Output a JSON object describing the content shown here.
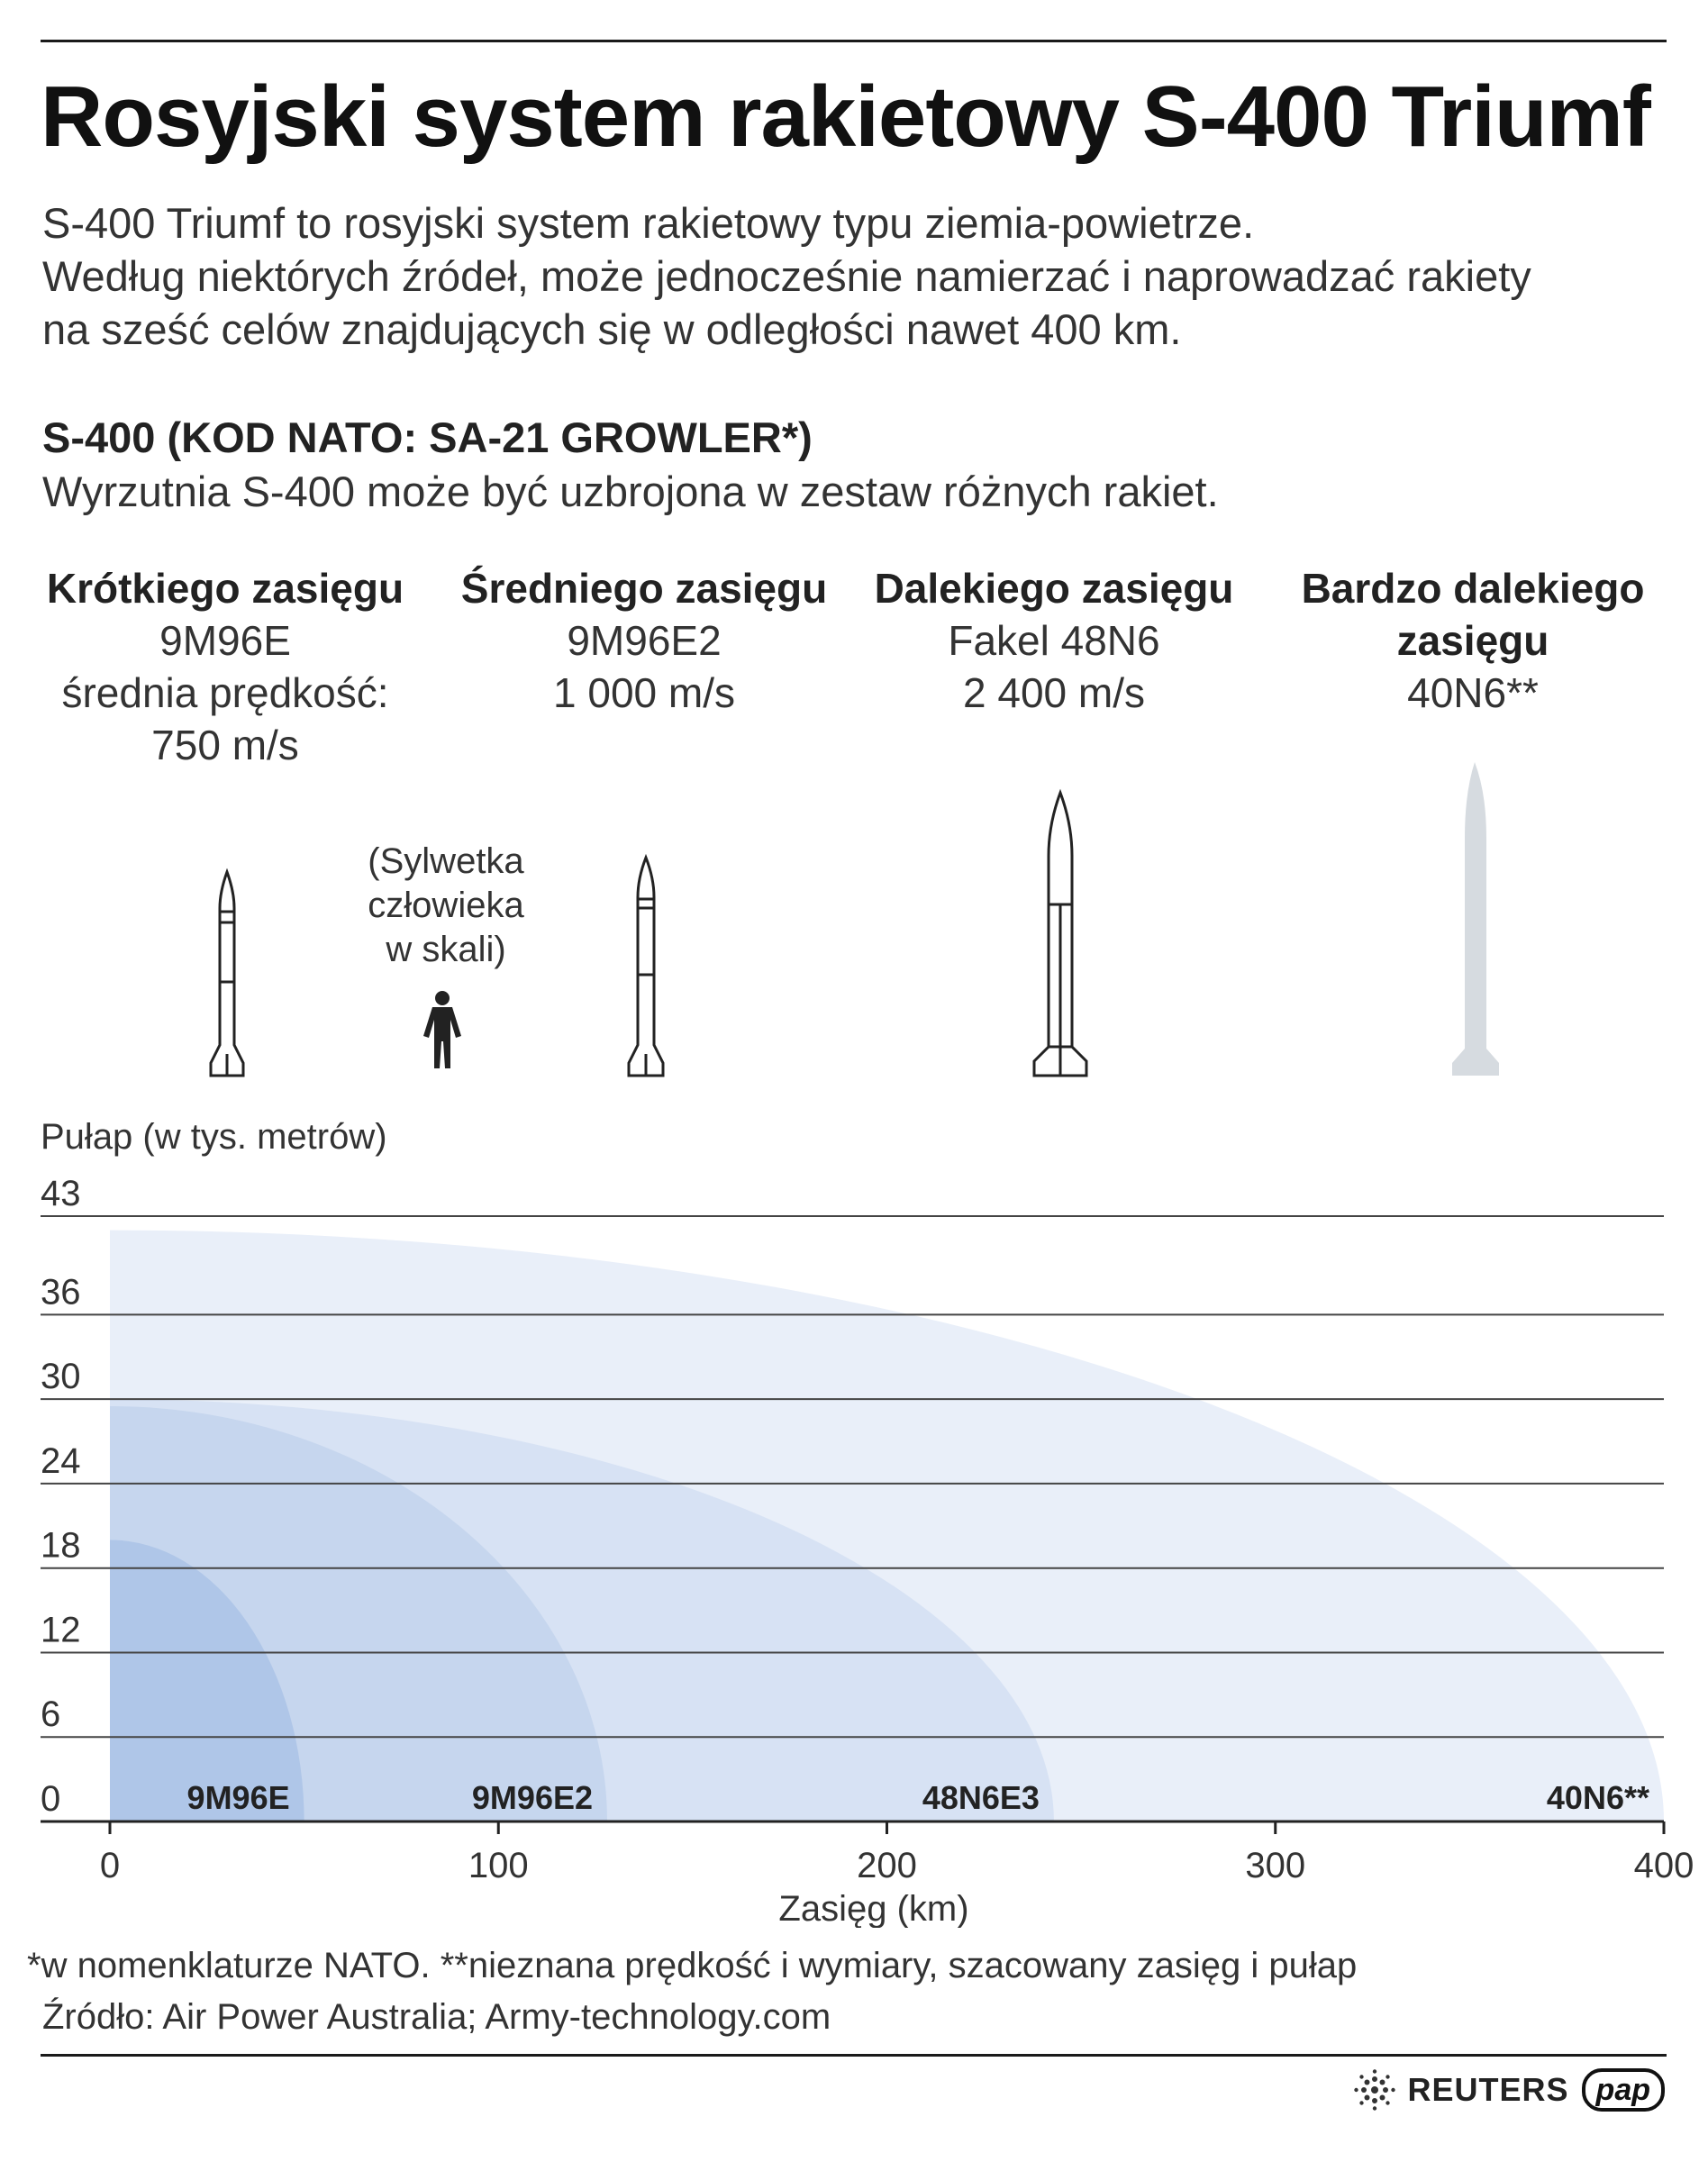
{
  "header": {
    "title": "Rosyjski system rakietowy S-400 Triumf",
    "intro": [
      "S-400 Triumf to rosyjski system rakietowy typu ziemia-powietrze.",
      "Według niektórych źródeł, może jednocześnie namierzać i naprowadzać rakiety",
      "na sześć celów znajdujących się w odległości nawet 400 km."
    ]
  },
  "section": {
    "heading": "S-400 (KOD NATO: SA-21 GROWLER*)",
    "description": "Wyrzutnia S-400 może być uzbrojona w zestaw różnych rakiet."
  },
  "missiles": [
    {
      "class": "Krótkiego zasięgu",
      "name": "9M96E",
      "speed_line1": "średnia prędkość:",
      "speed_line2": "750 m/s"
    },
    {
      "class": "Średniego zasięgu",
      "name": "9M96E2",
      "speed_line1": "1 000 m/s",
      "speed_line2": ""
    },
    {
      "class": "Dalekiego zasięgu",
      "name": "Fakel 48N6",
      "speed_line1": "2 400 m/s",
      "speed_line2": ""
    },
    {
      "class_line1": "Bardzo dalekiego",
      "class_line2": "zasięgu",
      "name": "40N6**"
    }
  ],
  "scale_note": [
    "(Sylwetka",
    "człowieka",
    "w skali)"
  ],
  "chart_data": {
    "type": "area",
    "title": "",
    "ylabel": "Pułap (w tys. metrów)",
    "xlabel": "Zasięg (km)",
    "xlim": [
      0,
      400
    ],
    "ylim": [
      0,
      43
    ],
    "x_ticks": [
      0,
      100,
      200,
      300,
      400
    ],
    "y_ticks": [
      0,
      6,
      12,
      18,
      24,
      30,
      36,
      43
    ],
    "grid": true,
    "series": [
      {
        "name": "40N6**",
        "range_km": 400,
        "ceiling": 42,
        "color": "#e9eff9"
      },
      {
        "name": "48N6E3",
        "range_km": 243,
        "ceiling": 30,
        "color": "#d7e2f4"
      },
      {
        "name": "9M96E2",
        "range_km": 128,
        "ceiling": 29.5,
        "color": "#c6d6ee"
      },
      {
        "name": "9M96E",
        "range_km": 50,
        "ceiling": 20,
        "color": "#afc6e8"
      }
    ]
  },
  "footer": {
    "footnote": "*w nomenklaturze NATO. **nieznana prędkość i wymiary, szacowany zasięg i pułap",
    "source": "Źródło: Air Power Australia; Army-technology.com",
    "agency1": "REUTERS",
    "agency2": "pap"
  },
  "colors": {
    "grid": "#333333",
    "missile_outline": "#222222",
    "missile_40n6": "#d6dbe0"
  }
}
